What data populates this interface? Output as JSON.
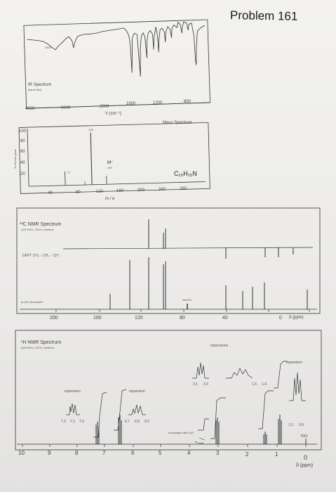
{
  "title": "Problem 161",
  "ir": {
    "label": "IR Spectrum",
    "sublabel": "(liquid film)",
    "peak_label": "3400",
    "x_ticks": [
      "4000",
      "3000",
      "2000",
      "1600",
      "1200",
      "800"
    ],
    "x_unit": "V (cm⁻¹)"
  },
  "mass": {
    "label": "Mass Spectrum",
    "y_ticks": [
      "100",
      "80",
      "60",
      "40",
      "20"
    ],
    "y_axis_label": "% of base peak",
    "x_ticks": [
      "40",
      "80",
      "120",
      "160",
      "200",
      "240",
      "280"
    ],
    "x_unit": "m / e",
    "peak_label_base": "108",
    "peak_label_77": "77",
    "molecular_ion": "M⁺",
    "molecular_ion_value": "149",
    "formula": "C₁₀H₁₅N"
  },
  "c13": {
    "label": "¹³C NMR Spectrum",
    "sublabel": "(100 MHz, CDCl₃ solution)",
    "dept_label": "DEPT CH₂ ↓ CH₃ ↑ CH ↑",
    "proton_decoupled": "proton decoupled",
    "solvent": "solvent",
    "x_ticks": [
      "200",
      "160",
      "120",
      "80",
      "40",
      "0"
    ],
    "x_unit": "δ (ppm)"
  },
  "h1": {
    "label": "¹H NMR Spectrum",
    "sublabel": "(400 MHz, CDCl₃ solution)",
    "expansions_label": "expansions",
    "expansion_right": "expansion",
    "expansion_left": "expansion",
    "expansion_mid": "expansion",
    "inset_left_ticks": [
      "7.2",
      "7.1",
      "7.0"
    ],
    "inset_mid_ticks": [
      "6.7",
      "6.6",
      "6.5"
    ],
    "inset_top_ticks_a": [
      "3.1",
      "3.0"
    ],
    "inset_top_ticks_b": [
      "1.5",
      "1.4"
    ],
    "inset_right_ticks": [
      "1.0",
      "0.9"
    ],
    "exchanges": "exchanges with D₂O",
    "tms": "TMS",
    "x_ticks": [
      "10",
      "9",
      "8",
      "7",
      "6",
      "5",
      "4",
      "3",
      "2",
      "1",
      "0"
    ],
    "x_unit": "δ (ppm)"
  }
}
